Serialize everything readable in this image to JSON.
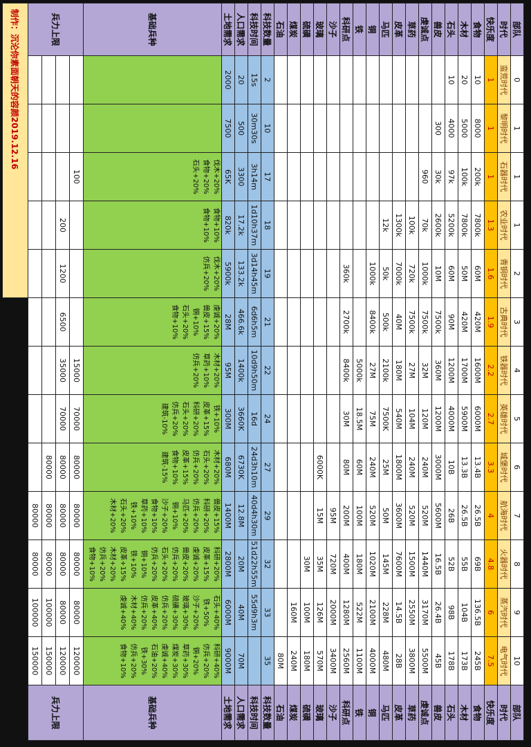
{
  "header": {
    "credit": "制作：沉沦你素面朝天的容颜2019.12.16"
  },
  "table": {
    "labels": [
      "部队",
      "时代",
      "快乐度",
      "食物",
      "木材",
      "石头",
      "兽皮",
      "虔诚点",
      "草药",
      "皮革",
      "马匹",
      "铜",
      "铁",
      "科研点",
      "沙子",
      "玻璃",
      "硫磺",
      "煤炭",
      "石油",
      "科技数量",
      "科技时间",
      "人口需求",
      "土地需求"
    ],
    "rows": [
      [
        "0",
        "1",
        "1",
        "1",
        "2",
        "3",
        "4",
        "5",
        "6",
        "7",
        "8",
        "9",
        "10"
      ],
      [
        "蛮荒时代",
        "黎明时代",
        "石器时代",
        "农业时代",
        "青铜时代",
        "古典时代",
        "铁器时代",
        "英雄时代",
        "城堡时代",
        "航海时代",
        "火器时代",
        "蒸汽时代",
        "电气时代"
      ],
      [
        "1",
        "1",
        "1",
        "1.3",
        "1.6",
        "1.9",
        "2.2",
        "2.7",
        "3.3",
        "4",
        "4.8",
        "6",
        "7.5"
      ],
      [
        "10",
        "8000",
        "200k",
        "7800k",
        "60M",
        "420M",
        "1600M",
        "6000M",
        "13.4B",
        "26.5B",
        "69B",
        "136.5B",
        "245B"
      ],
      [
        "20",
        "5000",
        "100k",
        "7800k",
        "50M",
        "420M",
        "1700M",
        "5900M",
        "13.3B",
        "26.5B",
        "55B",
        "104B",
        "173B"
      ],
      [
        "10",
        "4000",
        "97k",
        "5200k",
        "60M",
        "90M",
        "1200M",
        "4000M",
        "10B",
        "26B",
        "52B",
        "98B",
        "178B"
      ],
      [
        null,
        "300",
        "30k",
        "2600k",
        "10M",
        "7500k",
        "360M",
        "1200M",
        "3000M",
        "5600M",
        "16.5B",
        "26.4B",
        "45B"
      ],
      [
        null,
        null,
        "960",
        "70k",
        "1000k",
        "7500k",
        "32M",
        "120M",
        "240M",
        "520M",
        "1440M",
        "3170M",
        "5500M"
      ],
      [
        null,
        null,
        null,
        "100k",
        "720k",
        "7500k",
        "27M",
        "104M",
        "240M",
        "520M",
        "1500M",
        "2550M",
        "3800M"
      ],
      [
        null,
        null,
        null,
        "1300k",
        "7000k",
        "40M",
        "180M",
        "540M",
        "1800M",
        "3600M",
        "7600M",
        "14.5B",
        "28B"
      ],
      [
        null,
        null,
        null,
        "12k",
        "50k",
        "500k",
        "2100k",
        "7500K",
        "25M",
        "50M",
        "145M",
        "228M",
        "480M"
      ],
      [
        null,
        null,
        null,
        null,
        "1000k",
        "8400k",
        "27M",
        "75M",
        "240M",
        "520M",
        "1020M",
        "2100M",
        "4000M"
      ],
      [
        null,
        null,
        null,
        null,
        null,
        null,
        "5000k",
        "18.5M",
        "60M",
        "100M",
        "180M",
        "522M",
        "1100M"
      ],
      [
        null,
        null,
        null,
        null,
        "360k",
        "2700k",
        "8400k",
        "30M",
        "80M",
        "200M",
        "400M",
        "1280M",
        "2560M"
      ],
      [
        null,
        null,
        null,
        null,
        null,
        null,
        null,
        null,
        null,
        "95M",
        "720M",
        "2000M",
        "3400M"
      ],
      [
        null,
        null,
        null,
        null,
        null,
        null,
        null,
        null,
        "6000K",
        "15M",
        "35M",
        "126M",
        "570M"
      ],
      [
        null,
        null,
        null,
        null,
        null,
        null,
        null,
        null,
        null,
        null,
        "30M",
        "100M",
        "180M"
      ],
      [
        null,
        null,
        null,
        null,
        null,
        null,
        null,
        null,
        null,
        null,
        null,
        "160M",
        "240M"
      ],
      [
        null,
        null,
        null,
        null,
        null,
        null,
        null,
        null,
        null,
        null,
        null,
        null,
        "80M"
      ],
      [
        "2",
        "10",
        "17",
        "18",
        "19",
        "21",
        "22",
        "24",
        "27",
        "29",
        "32",
        "33",
        "35"
      ],
      [
        "15s",
        "30m30s",
        "3h14m",
        "1d10h37m",
        "3d14h45m",
        "6d6h5m",
        "10d9h50m",
        "16d",
        "24d3h10m",
        "40d4h30m",
        "51d22h55m",
        "55d9h3m",
        null
      ],
      [
        "20",
        "500",
        "3300",
        "17.2k",
        "133.2k",
        "466.6k",
        "1400k",
        "3660K",
        "6730K",
        "12.8M",
        "20M",
        "40M",
        "70M"
      ],
      [
        "2000",
        "7500",
        "65K",
        "820k",
        "5900k",
        "28M",
        "95M",
        "300M",
        "680M",
        "1400M",
        "2800M",
        "6000M",
        "9000M"
      ]
    ],
    "bonus_label": "基础兵种",
    "bonuses": [
      [],
      [],
      [
        "伐木+20%",
        "食物+20%",
        "石头+20%"
      ],
      [
        "食物+10%",
        "食物+10%"
      ],
      [
        "伐木+20%",
        "仿兵+20%"
      ],
      [
        "虔诚+20%",
        "兽皮+15%",
        "铜+10%",
        "石头+20%",
        "食物+10%"
      ],
      [
        "木材+20%",
        "草药+10%",
        "仿兵+20%"
      ],
      [
        "铁+10%",
        "皮革+15%",
        "科研+20%",
        "石头+20%",
        "仿兵+20%",
        "建筑-10%"
      ],
      [
        "木材+20%",
        "石头+20%",
        "仿兵+20%",
        "皮革+15%",
        "食物+10%",
        "建筑-15%"
      ],
      [
        "兽皮+15%",
        "科研+20%",
        "仿兵+20%",
        "马匹+20%",
        "铜+10%",
        "沙子+20%",
        "食物+10%",
        "草药+10%",
        "铁+10%",
        "石头+20%",
        "木材+20%"
      ],
      [
        "科研+20%",
        "皮革+15%",
        "虔诚+20%",
        "兽皮+20%",
        "仿兵+20%",
        "石头+20%",
        "仿兵+20%",
        "铜+10%",
        "铁+10%",
        "皮革+15%",
        "木材+20%",
        "仿兵+20%",
        "食物+10%"
      ],
      [
        "石头+40%",
        "铁+50%",
        "沙子+20%",
        "玻璃+30%",
        "硫磺+30%",
        "仿兵+20%",
        "皮革+40%",
        "仿兵+20%",
        "木材+40%",
        "虔诚+40%"
      ],
      [
        "科研+40%",
        "仿兵+20%",
        "铜+20%",
        "草药+30%",
        "煤炭+30%",
        "虔诚+40%",
        "石油+20%",
        "铁+30%",
        "仿兵+20%",
        "食物+10%"
      ]
    ],
    "cap_label": "兵力上限",
    "caps": [
      [
        null,
        null,
        "100",
        null,
        null,
        null,
        "15000",
        "70000",
        "80000",
        "80000",
        "80000",
        "80000",
        "120000"
      ],
      [
        null,
        null,
        null,
        "200",
        "1200",
        "6500",
        "35000",
        "70000",
        "80000",
        "80000",
        "80000",
        "80000",
        "120000"
      ],
      [
        null,
        null,
        null,
        null,
        null,
        null,
        null,
        null,
        "80000",
        "80000",
        "80000",
        "100000",
        "150000"
      ],
      [
        null,
        null,
        null,
        null,
        null,
        null,
        null,
        null,
        null,
        "80000",
        "80000",
        "100000",
        "150000"
      ]
    ]
  }
}
